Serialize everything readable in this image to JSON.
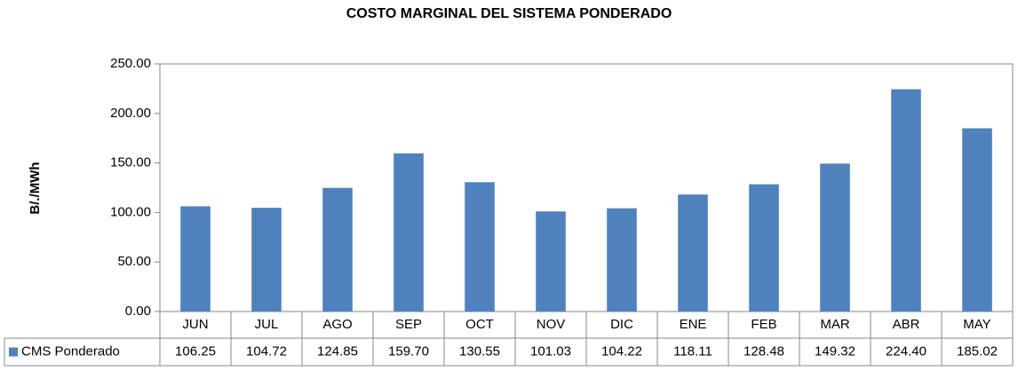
{
  "chart_data": {
    "type": "bar",
    "title": "COSTO MARGINAL DEL SISTEMA PONDERADO",
    "y_label": "B/./MWh",
    "categories": [
      "JUN",
      "JUL",
      "AGO",
      "SEP",
      "OCT",
      "NOV",
      "DIC",
      "ENE",
      "FEB",
      "MAR",
      "ABR",
      "MAY"
    ],
    "series": [
      {
        "name": "CMS Ponderado",
        "color": "#4f81bd",
        "values": [
          106.25,
          104.72,
          124.85,
          159.7,
          130.55,
          101.03,
          104.22,
          118.11,
          128.48,
          149.32,
          224.4,
          185.02
        ],
        "value_labels": [
          "106.25",
          "104.72",
          "124.85",
          "159.70",
          "130.55",
          "101.03",
          "104.22",
          "118.11",
          "128.48",
          "149.32",
          "224.40",
          "185.02"
        ]
      }
    ],
    "ylim": [
      0,
      250
    ],
    "yticks": [
      {
        "value": 0,
        "label": "0.00"
      },
      {
        "value": 50,
        "label": "50.00"
      },
      {
        "value": 100,
        "label": "100.00"
      },
      {
        "value": 150,
        "label": "150.00"
      },
      {
        "value": 200,
        "label": "200.00"
      },
      {
        "value": 250,
        "label": "250.00"
      }
    ],
    "grid": false,
    "data_table": true
  }
}
